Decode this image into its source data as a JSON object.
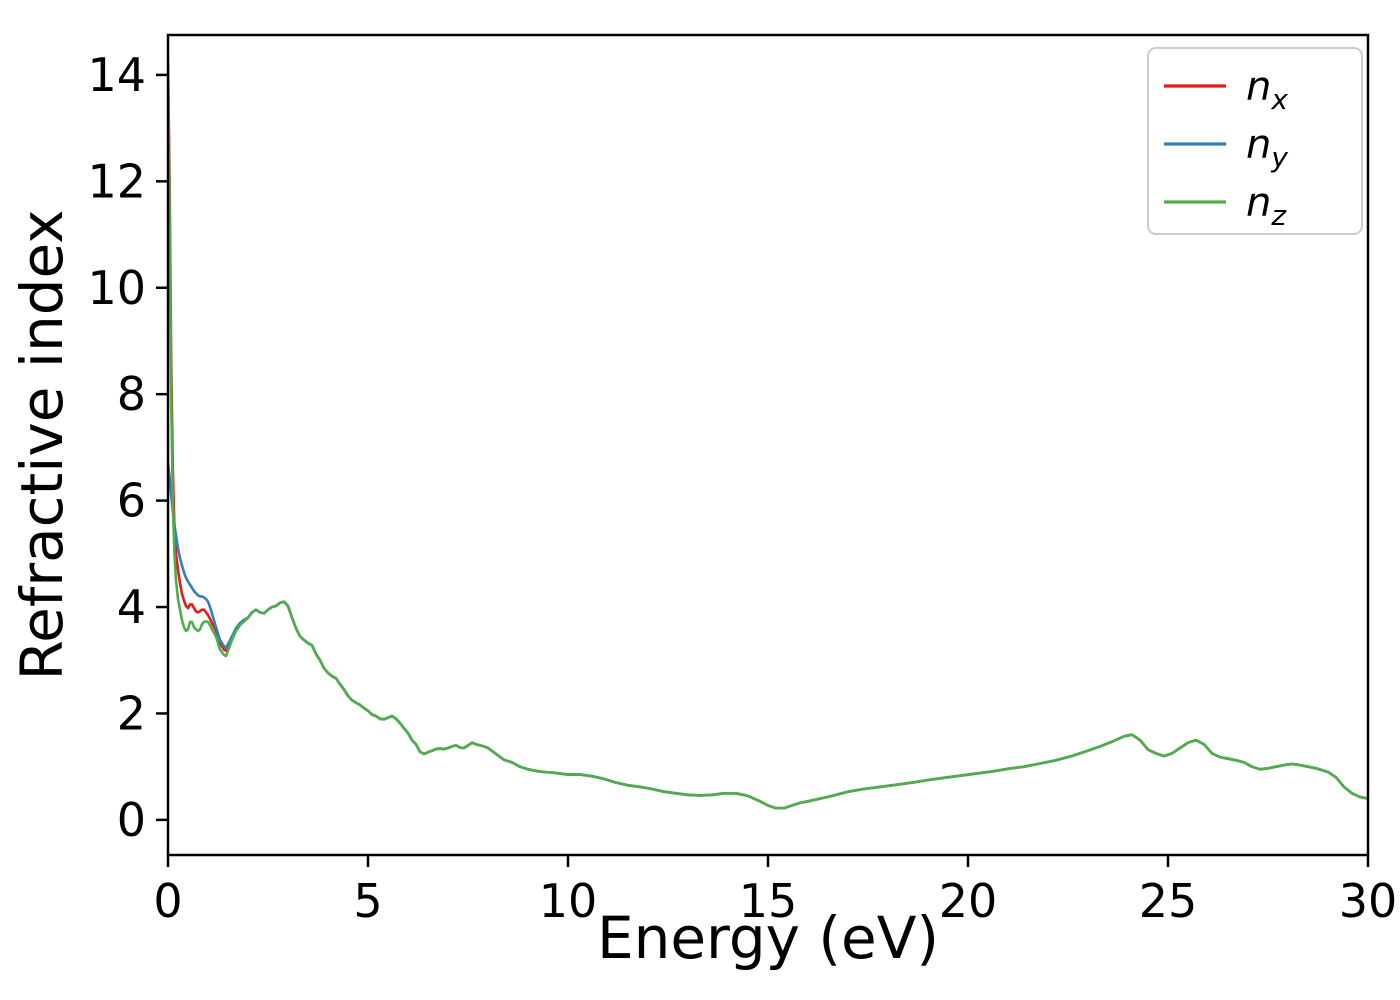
{
  "figure": {
    "background": "#ffffff",
    "axes_color": "#000000"
  },
  "chart_data": {
    "type": "line",
    "title": "",
    "xlabel": "Energy (eV)",
    "ylabel": "Refractive index",
    "xlim": [
      0,
      30
    ],
    "ylim": [
      -0.66,
      14.75
    ],
    "xticks": [
      0,
      5,
      10,
      15,
      20,
      25,
      30
    ],
    "yticks": [
      0,
      2,
      4,
      6,
      8,
      10,
      12,
      14
    ],
    "grid": false,
    "legend": {
      "position": "upper right",
      "border_color": "#cccccc",
      "background": "#ffffff"
    },
    "series": [
      {
        "name": "n_x",
        "label_base": "n",
        "label_sub": "x",
        "color": "#e41a1c",
        "points_low": [
          [
            0,
            14.2
          ],
          [
            0.04,
            12.0
          ],
          [
            0.08,
            8.6
          ],
          [
            0.12,
            6.6
          ],
          [
            0.16,
            5.5
          ],
          [
            0.2,
            5.0
          ],
          [
            0.25,
            4.7
          ],
          [
            0.3,
            4.45
          ],
          [
            0.35,
            4.25
          ],
          [
            0.4,
            4.12
          ],
          [
            0.45,
            4.02
          ],
          [
            0.5,
            3.98
          ],
          [
            0.55,
            4.05
          ],
          [
            0.6,
            4.05
          ],
          [
            0.65,
            3.98
          ],
          [
            0.7,
            3.92
          ],
          [
            0.75,
            3.9
          ],
          [
            0.8,
            3.92
          ],
          [
            0.85,
            3.95
          ],
          [
            0.9,
            3.95
          ],
          [
            0.95,
            3.9
          ],
          [
            1.0,
            3.85
          ],
          [
            1.05,
            3.78
          ],
          [
            1.1,
            3.7
          ],
          [
            1.2,
            3.55
          ],
          [
            1.3,
            3.32
          ],
          [
            1.4,
            3.2
          ],
          [
            1.45,
            3.18
          ],
          [
            1.5,
            3.25
          ],
          [
            1.6,
            3.42
          ],
          [
            1.7,
            3.58
          ],
          [
            1.8,
            3.68
          ],
          [
            1.9,
            3.75
          ]
        ]
      },
      {
        "name": "n_y",
        "label_base": "n",
        "label_sub": "y",
        "color": "#377eb8",
        "points_low": [
          [
            0,
            6.7
          ],
          [
            0.04,
            6.45
          ],
          [
            0.08,
            6.1
          ],
          [
            0.12,
            5.8
          ],
          [
            0.16,
            5.55
          ],
          [
            0.2,
            5.35
          ],
          [
            0.25,
            5.1
          ],
          [
            0.3,
            4.92
          ],
          [
            0.35,
            4.78
          ],
          [
            0.4,
            4.65
          ],
          [
            0.45,
            4.55
          ],
          [
            0.5,
            4.48
          ],
          [
            0.55,
            4.42
          ],
          [
            0.6,
            4.36
          ],
          [
            0.65,
            4.3
          ],
          [
            0.7,
            4.26
          ],
          [
            0.75,
            4.22
          ],
          [
            0.8,
            4.2
          ],
          [
            0.85,
            4.2
          ],
          [
            0.9,
            4.18
          ],
          [
            0.95,
            4.15
          ],
          [
            1.0,
            4.1
          ],
          [
            1.05,
            4.0
          ],
          [
            1.1,
            3.88
          ],
          [
            1.2,
            3.62
          ],
          [
            1.3,
            3.38
          ],
          [
            1.4,
            3.26
          ],
          [
            1.45,
            3.24
          ],
          [
            1.5,
            3.3
          ],
          [
            1.6,
            3.45
          ],
          [
            1.7,
            3.6
          ],
          [
            1.8,
            3.7
          ],
          [
            1.9,
            3.76
          ]
        ]
      },
      {
        "name": "n_z",
        "label_base": "n",
        "label_sub": "z",
        "color": "#4daf4a",
        "points_low": [
          [
            0,
            14.2
          ],
          [
            0.04,
            11.4
          ],
          [
            0.08,
            7.9
          ],
          [
            0.12,
            6.0
          ],
          [
            0.16,
            5.0
          ],
          [
            0.2,
            4.5
          ],
          [
            0.25,
            4.15
          ],
          [
            0.3,
            3.95
          ],
          [
            0.35,
            3.75
          ],
          [
            0.4,
            3.62
          ],
          [
            0.45,
            3.55
          ],
          [
            0.5,
            3.58
          ],
          [
            0.55,
            3.72
          ],
          [
            0.6,
            3.72
          ],
          [
            0.65,
            3.62
          ],
          [
            0.7,
            3.58
          ],
          [
            0.75,
            3.55
          ],
          [
            0.8,
            3.58
          ],
          [
            0.85,
            3.68
          ],
          [
            0.9,
            3.72
          ],
          [
            0.95,
            3.73
          ],
          [
            1.0,
            3.72
          ],
          [
            1.05,
            3.66
          ],
          [
            1.1,
            3.58
          ],
          [
            1.2,
            3.45
          ],
          [
            1.3,
            3.2
          ],
          [
            1.4,
            3.1
          ],
          [
            1.45,
            3.08
          ],
          [
            1.5,
            3.18
          ],
          [
            1.6,
            3.38
          ],
          [
            1.7,
            3.55
          ],
          [
            1.8,
            3.66
          ],
          [
            1.9,
            3.73
          ]
        ]
      }
    ],
    "shared_tail": [
      [
        2.0,
        3.8
      ],
      [
        2.1,
        3.9
      ],
      [
        2.2,
        3.95
      ],
      [
        2.3,
        3.9
      ],
      [
        2.4,
        3.88
      ],
      [
        2.5,
        3.95
      ],
      [
        2.6,
        4.0
      ],
      [
        2.7,
        4.02
      ],
      [
        2.8,
        4.08
      ],
      [
        2.9,
        4.1
      ],
      [
        3.0,
        4.02
      ],
      [
        3.1,
        3.8
      ],
      [
        3.2,
        3.6
      ],
      [
        3.3,
        3.45
      ],
      [
        3.4,
        3.38
      ],
      [
        3.5,
        3.32
      ],
      [
        3.6,
        3.28
      ],
      [
        3.7,
        3.12
      ],
      [
        3.8,
        3.0
      ],
      [
        3.9,
        2.85
      ],
      [
        4.0,
        2.76
      ],
      [
        4.1,
        2.7
      ],
      [
        4.2,
        2.66
      ],
      [
        4.3,
        2.55
      ],
      [
        4.4,
        2.45
      ],
      [
        4.5,
        2.33
      ],
      [
        4.6,
        2.25
      ],
      [
        4.7,
        2.2
      ],
      [
        4.8,
        2.16
      ],
      [
        4.9,
        2.1
      ],
      [
        5.0,
        2.05
      ],
      [
        5.1,
        1.98
      ],
      [
        5.2,
        1.95
      ],
      [
        5.3,
        1.9
      ],
      [
        5.4,
        1.89
      ],
      [
        5.5,
        1.92
      ],
      [
        5.6,
        1.95
      ],
      [
        5.7,
        1.9
      ],
      [
        5.8,
        1.82
      ],
      [
        5.9,
        1.72
      ],
      [
        6.0,
        1.63
      ],
      [
        6.1,
        1.5
      ],
      [
        6.2,
        1.42
      ],
      [
        6.3,
        1.28
      ],
      [
        6.4,
        1.24
      ],
      [
        6.5,
        1.27
      ],
      [
        6.6,
        1.3
      ],
      [
        6.7,
        1.33
      ],
      [
        6.8,
        1.34
      ],
      [
        6.9,
        1.33
      ],
      [
        7.0,
        1.35
      ],
      [
        7.1,
        1.38
      ],
      [
        7.2,
        1.4
      ],
      [
        7.3,
        1.36
      ],
      [
        7.4,
        1.35
      ],
      [
        7.5,
        1.4
      ],
      [
        7.6,
        1.45
      ],
      [
        7.7,
        1.42
      ],
      [
        7.8,
        1.4
      ],
      [
        7.9,
        1.38
      ],
      [
        8.0,
        1.35
      ],
      [
        8.2,
        1.24
      ],
      [
        8.4,
        1.13
      ],
      [
        8.6,
        1.08
      ],
      [
        8.8,
        1.0
      ],
      [
        9.0,
        0.95
      ],
      [
        9.2,
        0.92
      ],
      [
        9.4,
        0.9
      ],
      [
        9.6,
        0.89
      ],
      [
        9.8,
        0.87
      ],
      [
        10.0,
        0.85
      ],
      [
        10.3,
        0.85
      ],
      [
        10.6,
        0.82
      ],
      [
        10.9,
        0.77
      ],
      [
        11.2,
        0.7
      ],
      [
        11.5,
        0.65
      ],
      [
        11.8,
        0.62
      ],
      [
        12.1,
        0.58
      ],
      [
        12.4,
        0.53
      ],
      [
        12.7,
        0.5
      ],
      [
        13.0,
        0.47
      ],
      [
        13.3,
        0.46
      ],
      [
        13.6,
        0.47
      ],
      [
        13.9,
        0.5
      ],
      [
        14.2,
        0.5
      ],
      [
        14.5,
        0.45
      ],
      [
        14.8,
        0.35
      ],
      [
        15.0,
        0.27
      ],
      [
        15.2,
        0.22
      ],
      [
        15.4,
        0.22
      ],
      [
        15.6,
        0.27
      ],
      [
        15.8,
        0.32
      ],
      [
        16.0,
        0.35
      ],
      [
        16.3,
        0.4
      ],
      [
        16.6,
        0.45
      ],
      [
        17.0,
        0.53
      ],
      [
        17.4,
        0.58
      ],
      [
        17.8,
        0.62
      ],
      [
        18.2,
        0.66
      ],
      [
        18.6,
        0.7
      ],
      [
        19.0,
        0.75
      ],
      [
        19.4,
        0.79
      ],
      [
        19.8,
        0.83
      ],
      [
        20.2,
        0.87
      ],
      [
        20.6,
        0.91
      ],
      [
        21.0,
        0.96
      ],
      [
        21.4,
        1.0
      ],
      [
        21.8,
        1.06
      ],
      [
        22.2,
        1.12
      ],
      [
        22.6,
        1.2
      ],
      [
        23.0,
        1.3
      ],
      [
        23.3,
        1.38
      ],
      [
        23.6,
        1.47
      ],
      [
        23.9,
        1.57
      ],
      [
        24.1,
        1.6
      ],
      [
        24.3,
        1.5
      ],
      [
        24.5,
        1.32
      ],
      [
        24.7,
        1.25
      ],
      [
        24.9,
        1.2
      ],
      [
        25.1,
        1.25
      ],
      [
        25.3,
        1.35
      ],
      [
        25.5,
        1.45
      ],
      [
        25.7,
        1.5
      ],
      [
        25.9,
        1.42
      ],
      [
        26.1,
        1.25
      ],
      [
        26.3,
        1.18
      ],
      [
        26.5,
        1.15
      ],
      [
        26.7,
        1.12
      ],
      [
        26.9,
        1.08
      ],
      [
        27.1,
        1.0
      ],
      [
        27.3,
        0.95
      ],
      [
        27.5,
        0.97
      ],
      [
        27.7,
        1.0
      ],
      [
        27.9,
        1.03
      ],
      [
        28.1,
        1.05
      ],
      [
        28.3,
        1.03
      ],
      [
        28.5,
        1.0
      ],
      [
        28.7,
        0.97
      ],
      [
        29.0,
        0.9
      ],
      [
        29.2,
        0.8
      ],
      [
        29.4,
        0.62
      ],
      [
        29.6,
        0.5
      ],
      [
        29.8,
        0.43
      ],
      [
        30.0,
        0.4
      ]
    ]
  }
}
